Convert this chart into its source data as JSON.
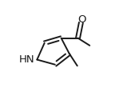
{
  "background": "#ffffff",
  "bond_color": "#1a1a1a",
  "bond_width": 1.4,
  "figsize": [
    1.54,
    1.4
  ],
  "dpi": 100,
  "xlim": [
    0,
    154
  ],
  "ylim": [
    0,
    140
  ],
  "N1": [
    35,
    75
  ],
  "C2": [
    47,
    48
  ],
  "C3": [
    74,
    40
  ],
  "C4": [
    87,
    65
  ],
  "C5": [
    64,
    83
  ],
  "Cacetyl": [
    101,
    40
  ],
  "O": [
    106,
    15
  ],
  "CH3ac": [
    120,
    52
  ],
  "CH3_4": [
    100,
    85
  ],
  "HN_x": 18,
  "HN_y": 75,
  "O_x": 107,
  "O_y": 10,
  "label_fontsize": 9.5
}
